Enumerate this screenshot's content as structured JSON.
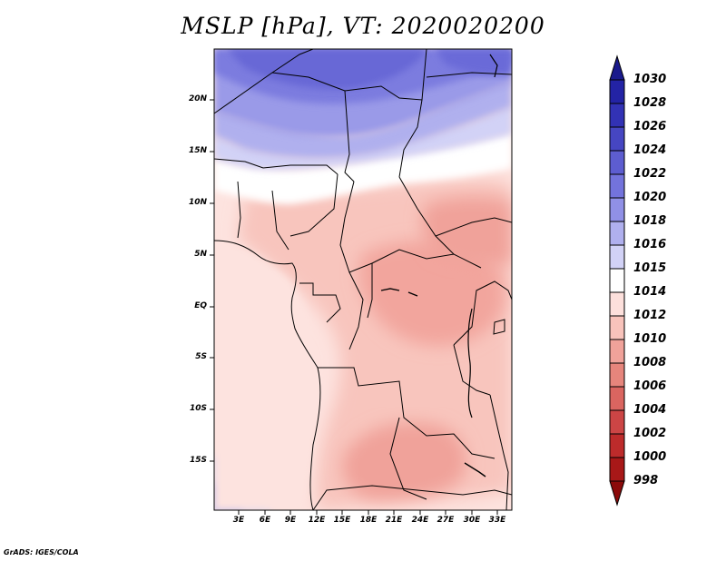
{
  "title": "MSLP [hPa], VT: 2020020200",
  "credit": "GrADS: IGES/COLA",
  "map": {
    "projection": "latlon",
    "lat_labels": [
      "20N",
      "15N",
      "10N",
      "5N",
      "EQ",
      "5S",
      "10S",
      "15S"
    ],
    "lon_labels": [
      "3E",
      "6E",
      "9E",
      "12E",
      "15E",
      "18E",
      "21E",
      "24E",
      "27E",
      "30E",
      "33E"
    ]
  },
  "colorbar": {
    "labels": [
      "1030",
      "1028",
      "1026",
      "1024",
      "1022",
      "1020",
      "1018",
      "1016",
      "1015",
      "1014",
      "1012",
      "1010",
      "1008",
      "1006",
      "1004",
      "1002",
      "1000",
      "998"
    ],
    "colors": [
      "#1a1a8c",
      "#2323a5",
      "#3232b5",
      "#4646c2",
      "#5d5dd0",
      "#7373dc",
      "#9090e6",
      "#b0b0ee",
      "#d2d2f6",
      "#ffffff",
      "#fde0dc",
      "#f8c3bb",
      "#f0a29a",
      "#e6857c",
      "#da6560",
      "#cc4545",
      "#bd2b2b",
      "#a81818",
      "#8b0a0a"
    ]
  }
}
